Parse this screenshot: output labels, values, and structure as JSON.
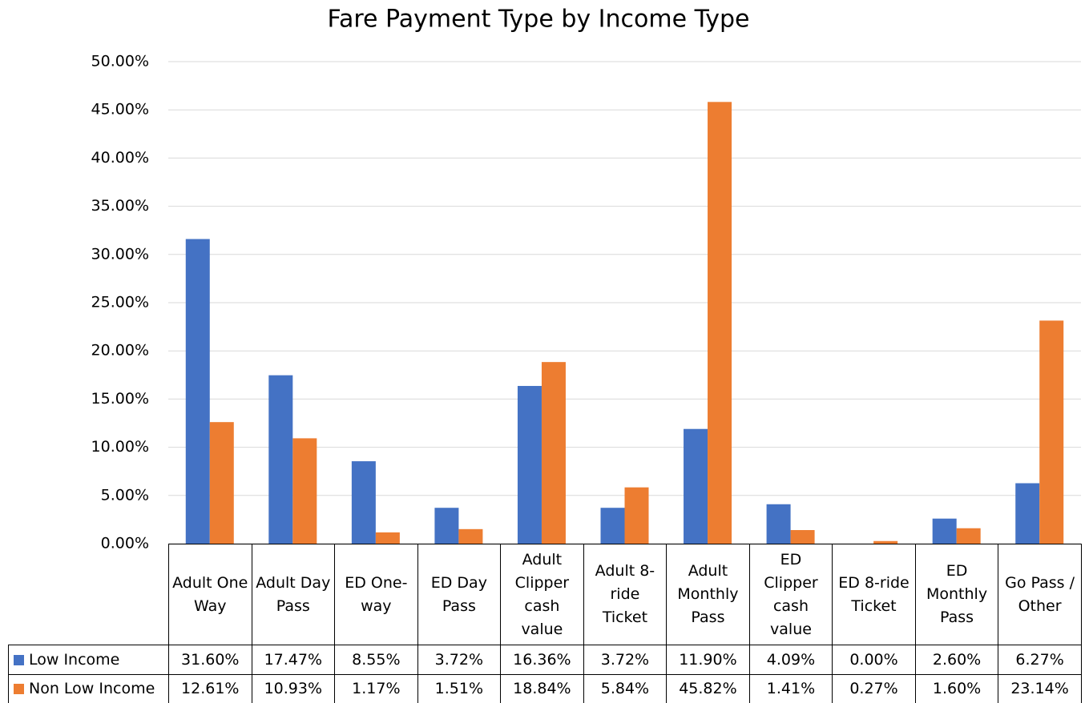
{
  "chart_data": {
    "type": "bar",
    "title": "Fare Payment Type by Income Type",
    "categories": [
      "Adult One Way",
      "Adult Day Pass",
      "ED One-way",
      "ED Day Pass",
      "Adult Clipper cash value",
      "Adult 8-ride Ticket",
      "Adult Monthly Pass",
      "ED Clipper cash value",
      "ED 8-ride Ticket",
      "ED Monthly Pass",
      "Go Pass / Other"
    ],
    "series": [
      {
        "name": "Low Income",
        "color": "#4472c4",
        "values": [
          31.6,
          17.47,
          8.55,
          3.72,
          16.36,
          3.72,
          11.9,
          4.09,
          0,
          2.6,
          6.27
        ],
        "value_labels": [
          "31.60%",
          "17.47%",
          "8.55%",
          "3.72%",
          "16.36%",
          "3.72%",
          "11.90%",
          "4.09%",
          "0.00%",
          "2.60%",
          "6.27%"
        ]
      },
      {
        "name": "Non Low Income",
        "color": "#ed7d31",
        "values": [
          12.61,
          10.93,
          1.17,
          1.51,
          18.84,
          5.84,
          45.82,
          1.41,
          0.27,
          1.6,
          23.14
        ],
        "value_labels": [
          "12.61%",
          "10.93%",
          "1.17%",
          "1.51%",
          "18.84%",
          "5.84%",
          "45.82%",
          "1.41%",
          "0.27%",
          "1.60%",
          "23.14%"
        ]
      }
    ],
    "ylim": [
      0,
      50
    ],
    "yticks": [
      {
        "value": 0,
        "label": "0.00%"
      },
      {
        "value": 5,
        "label": "5.00%"
      },
      {
        "value": 10,
        "label": "10.00%"
      },
      {
        "value": 15,
        "label": "15.00%"
      },
      {
        "value": 20,
        "label": "20.00%"
      },
      {
        "value": 25,
        "label": "25.00%"
      },
      {
        "value": 30,
        "label": "30.00%"
      },
      {
        "value": 35,
        "label": "35.00%"
      },
      {
        "value": 40,
        "label": "40.00%"
      },
      {
        "value": 45,
        "label": "45.00%"
      },
      {
        "value": 50,
        "label": "50.00%"
      }
    ],
    "grid": true,
    "legend": "table"
  }
}
